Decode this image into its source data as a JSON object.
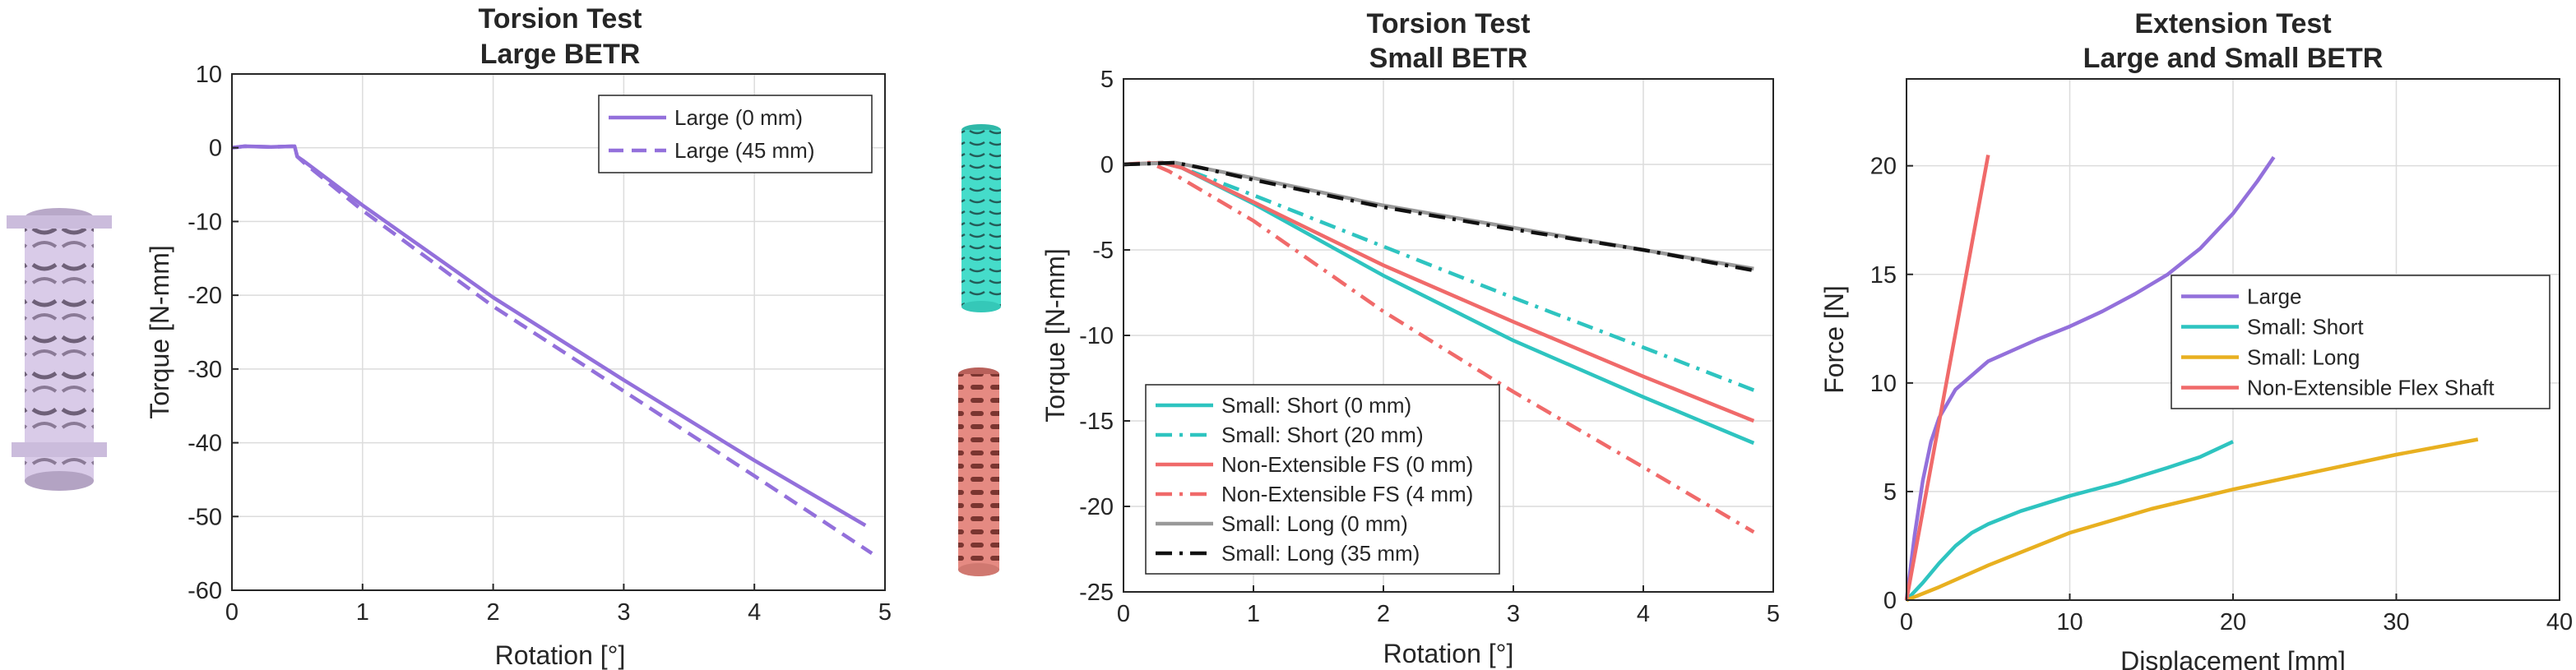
{
  "chart_data": [
    {
      "type": "line",
      "title_line1": "Torsion Test",
      "title_line2": "Large BETR",
      "xlabel": "Rotation [°]",
      "ylabel": "Torque [N-mm]",
      "xlim": [
        0,
        5
      ],
      "ylim": [
        -60,
        10
      ],
      "xticks": [
        0,
        1,
        2,
        3,
        4,
        5
      ],
      "yticks": [
        10,
        0,
        -10,
        -20,
        -30,
        -40,
        -50,
        -60
      ],
      "grid": true,
      "legend_position": "top-right",
      "series": [
        {
          "name": "Large (0 mm)",
          "color": "#9370db",
          "dash": "solid",
          "points": [
            [
              0,
              0
            ],
            [
              0.1,
              0.2
            ],
            [
              0.3,
              0.1
            ],
            [
              0.48,
              0.2
            ],
            [
              0.5,
              -1.2
            ],
            [
              0.55,
              -1.8
            ],
            [
              1,
              -7.8
            ],
            [
              2,
              -20.3
            ],
            [
              3,
              -31.5
            ],
            [
              4,
              -42.4
            ],
            [
              4.85,
              -51.2
            ]
          ]
        },
        {
          "name": "Large (45 mm)",
          "color": "#9370db",
          "dash": "dashed",
          "points": [
            [
              0,
              0
            ],
            [
              0.1,
              0.2
            ],
            [
              0.3,
              0.1
            ],
            [
              0.48,
              0.2
            ],
            [
              0.5,
              -1.2
            ],
            [
              0.55,
              -2
            ],
            [
              1,
              -8.5
            ],
            [
              2,
              -21.5
            ],
            [
              3,
              -33
            ],
            [
              4,
              -44.5
            ],
            [
              4.9,
              -55
            ]
          ]
        }
      ],
      "images": [
        {
          "name": "large-betr-tube-image",
          "color": "#d8c8e8"
        }
      ]
    },
    {
      "type": "line",
      "title_line1": "Torsion Test",
      "title_line2": "Small BETR",
      "xlabel": "Rotation [°]",
      "ylabel": "Torque [N-mm]",
      "xlim": [
        0,
        5
      ],
      "ylim": [
        -25,
        5
      ],
      "xticks": [
        0,
        1,
        2,
        3,
        4,
        5
      ],
      "yticks": [
        5,
        0,
        -5,
        -10,
        -15,
        -20,
        -25
      ],
      "grid": true,
      "legend_position": "bottom-left",
      "series": [
        {
          "name": "Small: Short (0 mm)",
          "color": "#2ec4c0",
          "dash": "solid",
          "points": [
            [
              0,
              0
            ],
            [
              0.3,
              0.1
            ],
            [
              0.45,
              -0.2
            ],
            [
              1,
              -2.3
            ],
            [
              2,
              -6.5
            ],
            [
              3,
              -10.3
            ],
            [
              4,
              -13.6
            ],
            [
              4.85,
              -16.3
            ]
          ]
        },
        {
          "name": "Small: Short (20 mm)",
          "color": "#2ec4c0",
          "dash": "dashdot",
          "points": [
            [
              0,
              0
            ],
            [
              0.3,
              0.1
            ],
            [
              0.45,
              -0.2
            ],
            [
              1,
              -1.8
            ],
            [
              2,
              -4.8
            ],
            [
              3,
              -7.8
            ],
            [
              4,
              -10.7
            ],
            [
              4.85,
              -13.2
            ]
          ]
        },
        {
          "name": "Non-Extensible FS (0 mm)",
          "color": "#f06a6a",
          "dash": "solid",
          "points": [
            [
              0,
              0
            ],
            [
              0.3,
              0.1
            ],
            [
              0.45,
              -0.2
            ],
            [
              1,
              -2.2
            ],
            [
              2,
              -5.9
            ],
            [
              3,
              -9.2
            ],
            [
              4,
              -12.4
            ],
            [
              4.85,
              -15
            ]
          ]
        },
        {
          "name": "Non-Extensible FS (4 mm)",
          "color": "#f06a6a",
          "dash": "dashdot",
          "points": [
            [
              0,
              0
            ],
            [
              0.2,
              0.1
            ],
            [
              0.35,
              -0.4
            ],
            [
              1,
              -3.3
            ],
            [
              2,
              -8.6
            ],
            [
              3,
              -13.3
            ],
            [
              4,
              -17.7
            ],
            [
              4.85,
              -21.5
            ]
          ]
        },
        {
          "name": "Small: Long (0 mm)",
          "color": "#999999",
          "dash": "solid",
          "points": [
            [
              0,
              0
            ],
            [
              0.4,
              0.1
            ],
            [
              0.6,
              -0.2
            ],
            [
              1,
              -0.8
            ],
            [
              2,
              -2.4
            ],
            [
              3,
              -3.7
            ],
            [
              4,
              -5
            ],
            [
              4.85,
              -6.1
            ]
          ]
        },
        {
          "name": "Small: Long (35 mm)",
          "color": "#111111",
          "dash": "dashdot",
          "points": [
            [
              0,
              0
            ],
            [
              0.4,
              0.1
            ],
            [
              0.6,
              -0.2
            ],
            [
              1,
              -0.9
            ],
            [
              2,
              -2.5
            ],
            [
              3,
              -3.8
            ],
            [
              4,
              -5
            ],
            [
              4.85,
              -6.2
            ]
          ]
        }
      ],
      "images": [
        {
          "name": "small-short-tube-image",
          "color": "#3fd8c8"
        },
        {
          "name": "flex-shaft-tube-image",
          "color": "#e07870"
        }
      ]
    },
    {
      "type": "line",
      "title_line1": "Extension Test",
      "title_line2": "Large and Small BETR",
      "xlabel": "Displacement [mm]",
      "ylabel": "Force [N]",
      "xlim": [
        0,
        40
      ],
      "ylim": [
        0,
        24
      ],
      "xticks": [
        0,
        10,
        20,
        30,
        40
      ],
      "yticks": [
        0,
        5,
        10,
        15,
        20
      ],
      "grid": true,
      "legend_position": "right",
      "series": [
        {
          "name": "Large",
          "color": "#9370db",
          "dash": "solid",
          "points": [
            [
              0,
              0
            ],
            [
              0.5,
              3
            ],
            [
              1,
              5.5
            ],
            [
              1.5,
              7.3
            ],
            [
              2,
              8.4
            ],
            [
              3,
              9.7
            ],
            [
              5,
              11
            ],
            [
              8,
              12
            ],
            [
              10,
              12.6
            ],
            [
              12,
              13.3
            ],
            [
              14,
              14.1
            ],
            [
              16,
              15
            ],
            [
              18,
              16.2
            ],
            [
              20,
              17.8
            ],
            [
              21.5,
              19.3
            ],
            [
              22.5,
              20.4
            ]
          ]
        },
        {
          "name": "Small: Short",
          "color": "#2ec4c0",
          "dash": "solid",
          "points": [
            [
              0,
              0
            ],
            [
              1,
              0.8
            ],
            [
              2,
              1.7
            ],
            [
              3,
              2.5
            ],
            [
              4,
              3.1
            ],
            [
              5,
              3.5
            ],
            [
              7,
              4.1
            ],
            [
              10,
              4.8
            ],
            [
              13,
              5.4
            ],
            [
              16,
              6.1
            ],
            [
              18,
              6.6
            ],
            [
              20,
              7.3
            ]
          ]
        },
        {
          "name": "Small: Long",
          "color": "#e8b020",
          "dash": "solid",
          "points": [
            [
              0,
              0
            ],
            [
              2,
              0.6
            ],
            [
              5,
              1.6
            ],
            [
              10,
              3.1
            ],
            [
              15,
              4.2
            ],
            [
              20,
              5.1
            ],
            [
              25,
              5.9
            ],
            [
              30,
              6.7
            ],
            [
              35,
              7.4
            ]
          ]
        },
        {
          "name": "Non-Extensible Flex Shaft",
          "color": "#f06a6a",
          "dash": "solid",
          "points": [
            [
              0,
              0
            ],
            [
              1,
              4.1
            ],
            [
              2,
              8.2
            ],
            [
              3,
              12.3
            ],
            [
              4,
              16.4
            ],
            [
              5,
              20.5
            ]
          ]
        }
      ]
    }
  ]
}
